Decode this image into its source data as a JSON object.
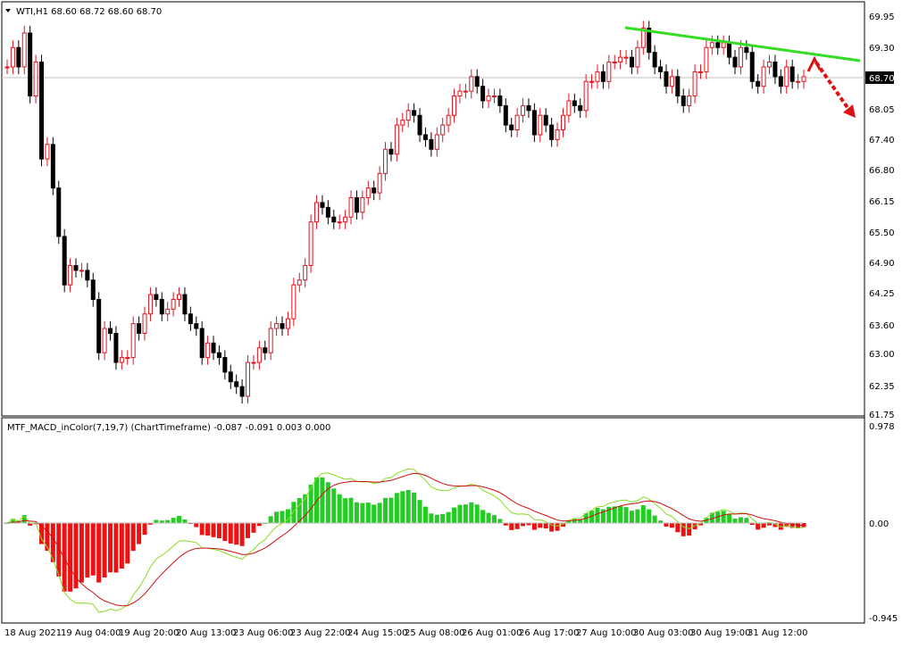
{
  "price_panel": {
    "header": "WTI,H1  68.60 68.72 68.60 68.70",
    "current_price_label": "68.70",
    "y_ticks": [
      "69.95",
      "69.30",
      "68.70",
      "68.05",
      "67.40",
      "66.80",
      "66.15",
      "65.50",
      "64.90",
      "64.25",
      "63.60",
      "63.00",
      "62.35",
      "61.75"
    ]
  },
  "macd_panel": {
    "header": "MTF_MACD_inColor(7,19,7) (ChartTimeframe) -0.087 -0.091 0.003 0.000",
    "y_ticks": [
      "0.978",
      "0.00",
      "-0.945"
    ]
  },
  "x_axis": {
    "labels": [
      "18 Aug 2021",
      "19 Aug 04:00",
      "19 Aug 20:00",
      "20 Aug 13:00",
      "23 Aug 06:00",
      "23 Aug 22:00",
      "24 Aug 15:00",
      "25 Aug 08:00",
      "26 Aug 01:00",
      "26 Aug 17:00",
      "27 Aug 10:00",
      "30 Aug 03:00",
      "30 Aug 19:00",
      "31 Aug 12:00"
    ]
  },
  "colors": {
    "bull_candle": "#e0141e",
    "bear_candle": "#000000",
    "trendline": "#33dd22",
    "arrow": "#dd1111",
    "hist_positive": "#22cc22",
    "hist_negative": "#ee1111",
    "macd_line": "#88dd22",
    "signal_line": "#cc1111"
  },
  "chart_data": [
    {
      "type": "candlestick",
      "series": [
        {
          "key": [
            68.9,
            69.3,
            68.9,
            69.6,
            68.3,
            69.0,
            67.0,
            67.3,
            66.4,
            65.4,
            64.4,
            64.8,
            64.7,
            64.7,
            64.5,
            64.1,
            63.0,
            63.5,
            63.4,
            62.8,
            62.9,
            62.9,
            63.6,
            63.4,
            63.8,
            64.2,
            64.1,
            63.8,
            63.9,
            64.1,
            64.2,
            63.8,
            63.6,
            63.5,
            62.9,
            63.2,
            63.0,
            62.9,
            62.6,
            62.4,
            62.3,
            62.1,
            62.8,
            62.8,
            63.1,
            63.0,
            63.5,
            63.6,
            63.5,
            63.7,
            64.4,
            64.5,
            64.8,
            65.7,
            66.1,
            66.0,
            65.8,
            65.7,
            65.7,
            65.8,
            66.2,
            65.9,
            66.2,
            66.4,
            66.3,
            66.7,
            67.2,
            67.1,
            67.7,
            67.8,
            68.0,
            67.9,
            67.5,
            67.4,
            67.2,
            67.5,
            67.7,
            67.9,
            68.3,
            68.4,
            68.4,
            68.7,
            68.5,
            68.2,
            68.3,
            68.3,
            68.1,
            67.7,
            67.6,
            67.9,
            68.1,
            68.0,
            67.5,
            67.9,
            67.7,
            67.4,
            67.6,
            67.9,
            68.2,
            68.1,
            68.0,
            68.6,
            68.6,
            68.8,
            68.6,
            69.0,
            69.0,
            69.1,
            69.1,
            68.9,
            69.3,
            69.7,
            69.2,
            68.9,
            68.8,
            68.5,
            68.7,
            68.3,
            68.1,
            68.3,
            68.8,
            68.8,
            69.3,
            69.4,
            69.3,
            69.4,
            69.1,
            68.9,
            69.3,
            69.2,
            68.6,
            68.5,
            68.9,
            69.0,
            68.7,
            68.5,
            68.9,
            68.6,
            68.6,
            68.7
          ],
          "decoded_from": "candles=[open, close] pairs start=68.9 step=0.1"
        }
      ]
    },
    {
      "type": "bar",
      "name": "MTF_MACD_inColor histogram",
      "range": [
        -0.945,
        0.978
      ]
    }
  ]
}
